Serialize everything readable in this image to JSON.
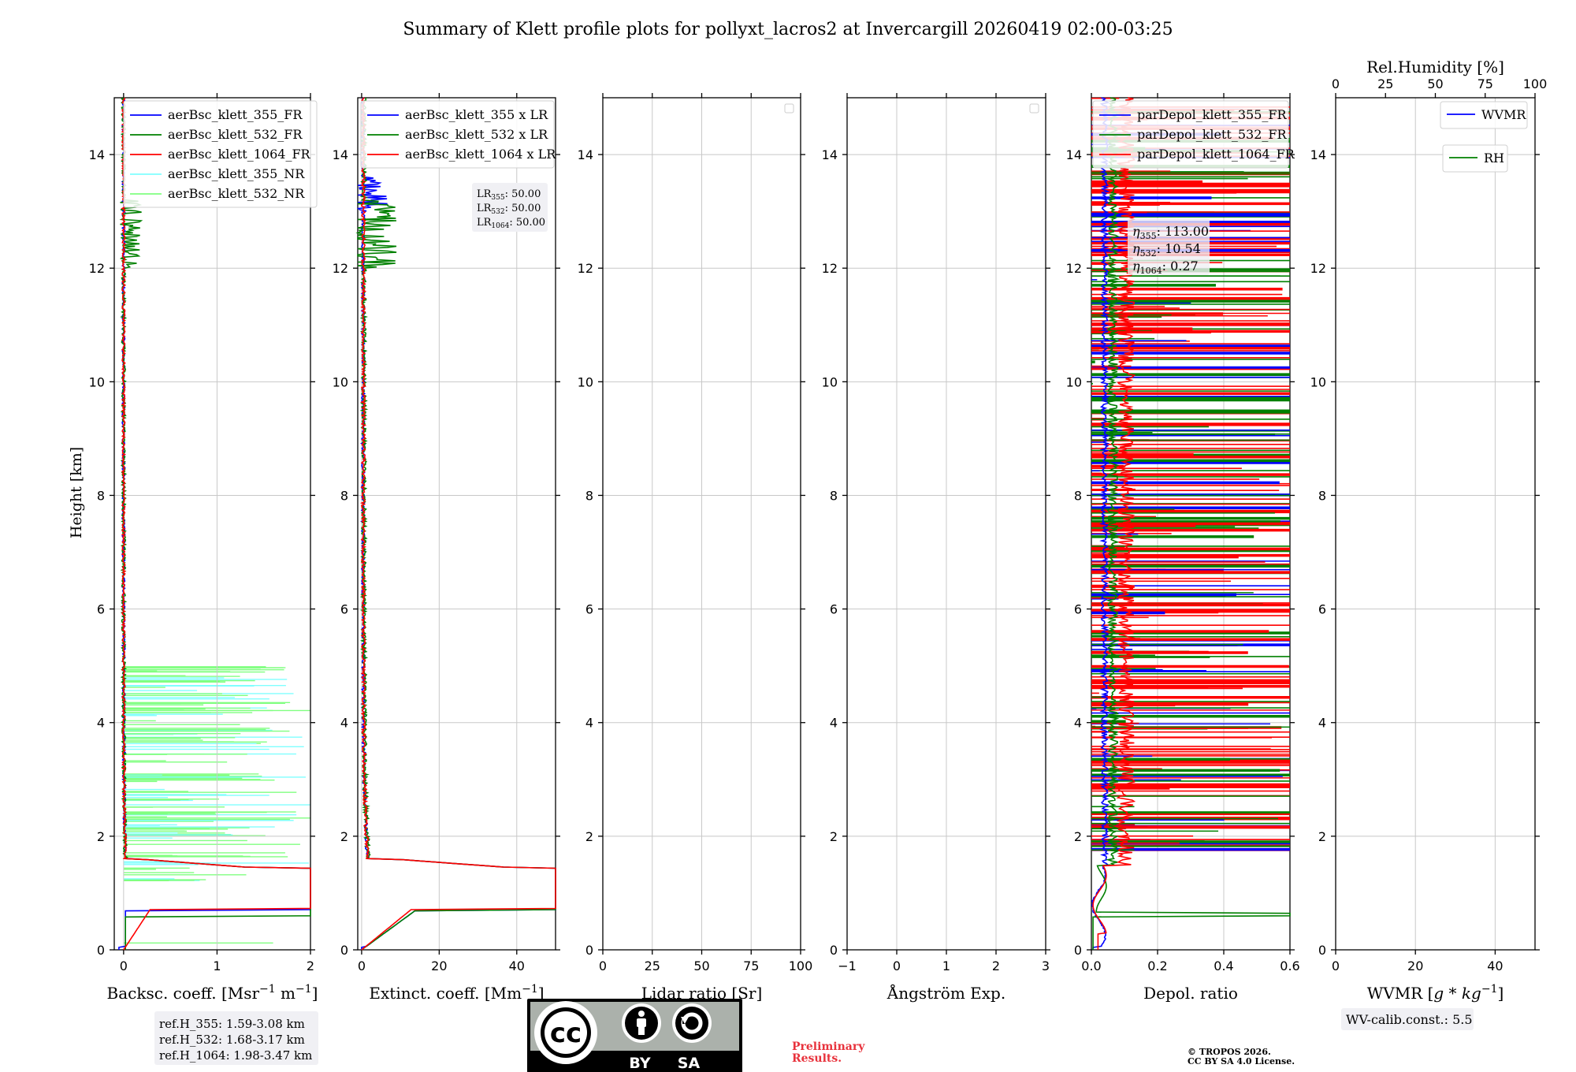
{
  "title": "Summary of Klett profile plots for pollyxt_lacros2 at Invercargill 20260419 02:00-03:25",
  "chart_data": [
    {
      "type": "line",
      "id": "bsc",
      "xlabel": "Backsc. coeff. [Msr$^{-1}$ m$^{-1}$]",
      "xlabel_text": "Backsc. coeff. [Msr",
      "xlabel_sup1": "−1",
      "xlabel_mid": " m",
      "xlabel_sup2": "−1",
      "xlabel_end": "]",
      "ylabel": "Height [km]",
      "xlim": [
        -0.1,
        2.0
      ],
      "ylim": [
        0,
        15
      ],
      "xticks": [
        "0",
        "1",
        "2"
      ],
      "yticks": [
        "0",
        "2",
        "4",
        "6",
        "8",
        "10",
        "12",
        "14"
      ],
      "legend": [
        {
          "name": "aerBsc_klett_355_FR",
          "color": "#0000ff"
        },
        {
          "name": "aerBsc_klett_532_FR",
          "color": "#008000"
        },
        {
          "name": "aerBsc_klett_1064_FR",
          "color": "#ff0000"
        },
        {
          "name": "aerBsc_klett_355_NR",
          "color": "#80ffff"
        },
        {
          "name": "aerBsc_klett_532_NR",
          "color": "#80ff80"
        }
      ],
      "ref_heights": [
        "ref.H_355: 1.59-3.08 km",
        "ref.H_532: 1.68-3.17 km",
        "ref.H_1064: 1.98-3.47 km"
      ]
    },
    {
      "type": "line",
      "id": "ext",
      "xlabel_text": "Extinct. coeff. [Mm",
      "xlabel_sup1": "−1",
      "xlabel_end": "]",
      "xlim": [
        -1,
        50
      ],
      "ylim": [
        0,
        15
      ],
      "xticks": [
        "0",
        "20",
        "40"
      ],
      "yticks": [
        "0",
        "2",
        "4",
        "6",
        "8",
        "10",
        "12",
        "14"
      ],
      "legend": [
        {
          "name": "aerBsc_klett_355 x LR",
          "color": "#0000ff"
        },
        {
          "name": "aerBsc_klett_532 x LR",
          "color": "#008000"
        },
        {
          "name": "aerBsc_klett_1064 x LR",
          "color": "#ff0000"
        }
      ],
      "lidar_ratios": [
        {
          "label": "LR",
          "sub": "355",
          "value": ": 50.00"
        },
        {
          "label": "LR",
          "sub": "532",
          "value": ": 50.00"
        },
        {
          "label": "LR",
          "sub": "1064",
          "value": ": 50.00"
        }
      ]
    },
    {
      "type": "line",
      "id": "lr",
      "xlabel_text": "Lidar ratio [Sr]",
      "xlim": [
        0,
        100
      ],
      "ylim": [
        0,
        15
      ],
      "xticks": [
        "0",
        "25",
        "50",
        "75",
        "100"
      ],
      "yticks": [
        "0",
        "2",
        "4",
        "6",
        "8",
        "10",
        "12",
        "14"
      ]
    },
    {
      "type": "line",
      "id": "ang",
      "xlabel_text": "Ångström Exp.",
      "xlim": [
        -1,
        3
      ],
      "ylim": [
        0,
        15
      ],
      "xticks": [
        "−1",
        "0",
        "1",
        "2",
        "3"
      ],
      "yticks": [
        "0",
        "2",
        "4",
        "6",
        "8",
        "10",
        "12",
        "14"
      ]
    },
    {
      "type": "line",
      "id": "depol",
      "xlabel_text": "Depol. ratio",
      "xlim": [
        0,
        0.6
      ],
      "ylim": [
        0,
        15
      ],
      "xticks": [
        "0.0",
        "0.2",
        "0.4",
        "0.6"
      ],
      "yticks": [
        "0",
        "2",
        "4",
        "6",
        "8",
        "10",
        "12",
        "14"
      ],
      "legend": [
        {
          "name": "parDepol_klett_355_FR",
          "color": "#0000ff"
        },
        {
          "name": "parDepol_klett_532_FR",
          "color": "#008000"
        },
        {
          "name": "parDepol_klett_1064_FR",
          "color": "#ff0000"
        }
      ],
      "eta": [
        {
          "sub": "355",
          "value": ": 113.00"
        },
        {
          "sub": "532",
          "value": ": 10.54"
        },
        {
          "sub": "1064",
          "value": ": 0.27"
        }
      ]
    },
    {
      "type": "line",
      "id": "wv",
      "xlabel_text": "WVMR [",
      "xlabel_math": "g * kg",
      "xlabel_sup1": "−1",
      "xlabel_end": "]",
      "xlim": [
        0,
        50
      ],
      "ylim": [
        0,
        15
      ],
      "xticks": [
        "0",
        "20",
        "40"
      ],
      "yticks": [
        "0",
        "2",
        "4",
        "6",
        "8",
        "10",
        "12",
        "14"
      ],
      "top_xlabel": "Rel.Humidity [%]",
      "top_xlim": [
        0,
        100
      ],
      "top_xticks": [
        "0",
        "25",
        "50",
        "75",
        "100"
      ],
      "legend": [
        {
          "name": "WVMR",
          "color": "#0000ff"
        },
        {
          "name": "RH",
          "color": "#008000"
        }
      ],
      "calib_const": "WV-calib.const.: 5.5"
    }
  ],
  "footer": {
    "license_badge": {
      "cc": "cc",
      "by": "BY",
      "sa": "SA"
    },
    "preliminary": [
      "Preliminary",
      "Results."
    ],
    "copyright": [
      "© TROPOS 2026.",
      "CC BY SA 4.0 License."
    ]
  },
  "colors": {
    "blue": "#0000ff",
    "green": "#008000",
    "red": "#ff0000",
    "cyan": "#80ffff",
    "lightgreen": "#80ff80",
    "preliminary": "#e8323c"
  }
}
